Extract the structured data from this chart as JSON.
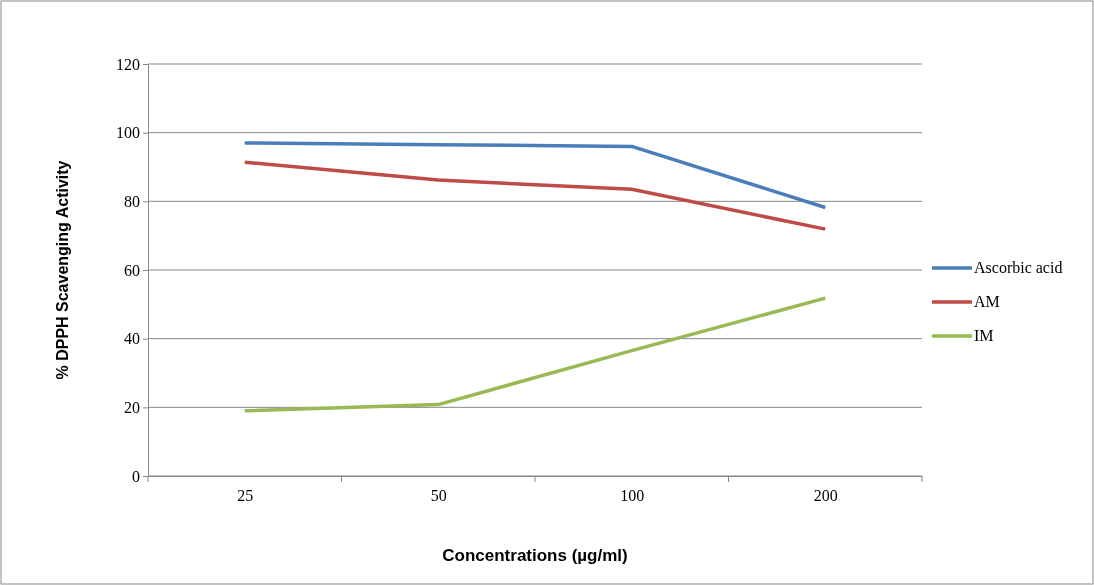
{
  "chart_data": {
    "type": "line",
    "xlabel": "Concentrations (µg/ml)",
    "ylabel": "% DPPH Scavenging Activity",
    "categories": [
      "25",
      "50",
      "100",
      "200"
    ],
    "series": [
      {
        "name": "Ascorbic acid",
        "color": "#4a7ebb",
        "values": [
          97.0,
          96.5,
          96.0,
          78.2
        ]
      },
      {
        "name": "AM",
        "color": "#be4b48",
        "values": [
          91.4,
          86.2,
          83.5,
          71.9
        ]
      },
      {
        "name": "IM",
        "color": "#98b954",
        "values": [
          19.0,
          20.8,
          36.5,
          51.8
        ]
      }
    ],
    "ylim": [
      0,
      120
    ],
    "yticks": [
      0,
      20,
      40,
      60,
      80,
      100,
      120
    ],
    "grid": "y",
    "legend": "right",
    "marker": "none"
  }
}
